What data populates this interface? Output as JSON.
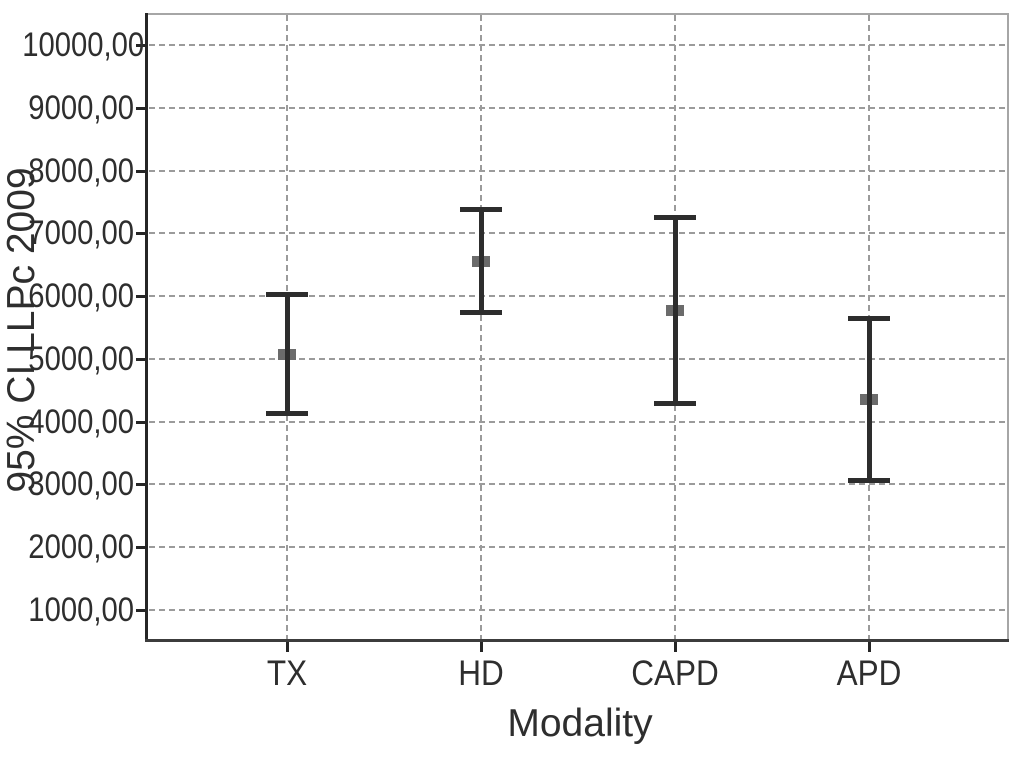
{
  "chart_data": {
    "type": "errorbar",
    "title": "",
    "xlabel": "Modality",
    "ylabel": "95% CI LLPc 2009",
    "categories": [
      "TX",
      "HD",
      "CAPD",
      "APD"
    ],
    "series": [
      {
        "name": "95% CI LLPc 2009",
        "points": [
          {
            "category": "TX",
            "mean": 5075,
            "lower": 4130,
            "upper": 6030
          },
          {
            "category": "HD",
            "mean": 6565,
            "lower": 5740,
            "upper": 7390
          },
          {
            "category": "CAPD",
            "mean": 5775,
            "lower": 4295,
            "upper": 7260
          },
          {
            "category": "APD",
            "mean": 4355,
            "lower": 3060,
            "upper": 5645
          }
        ]
      }
    ],
    "y_axis": {
      "min": 500,
      "max": 10500,
      "tick_values": [
        1000,
        2000,
        3000,
        4000,
        5000,
        6000,
        7000,
        8000,
        9000,
        10000
      ],
      "tick_labels": [
        "1000,00",
        "2000,00",
        "3000,00",
        "4000,00",
        "5000,00",
        "6000,00",
        "7000,00",
        "8000,00",
        "9000,00",
        "10000,00"
      ],
      "decimal_separator": ","
    },
    "grid": {
      "horizontal": true,
      "vertical": true,
      "style": "dashed"
    },
    "legend": "none",
    "marker_shape": "square"
  },
  "colors": {
    "background": "#ffffff",
    "errorbar": "#2d2d2d",
    "mean_marker": "#6b6b6b",
    "gridline": "#9b9b9b",
    "axis_dark": "#262626",
    "axis_bottom": "#3c3c3c",
    "frame_light": "#a6a6a6",
    "text": "#2e2e2e"
  }
}
